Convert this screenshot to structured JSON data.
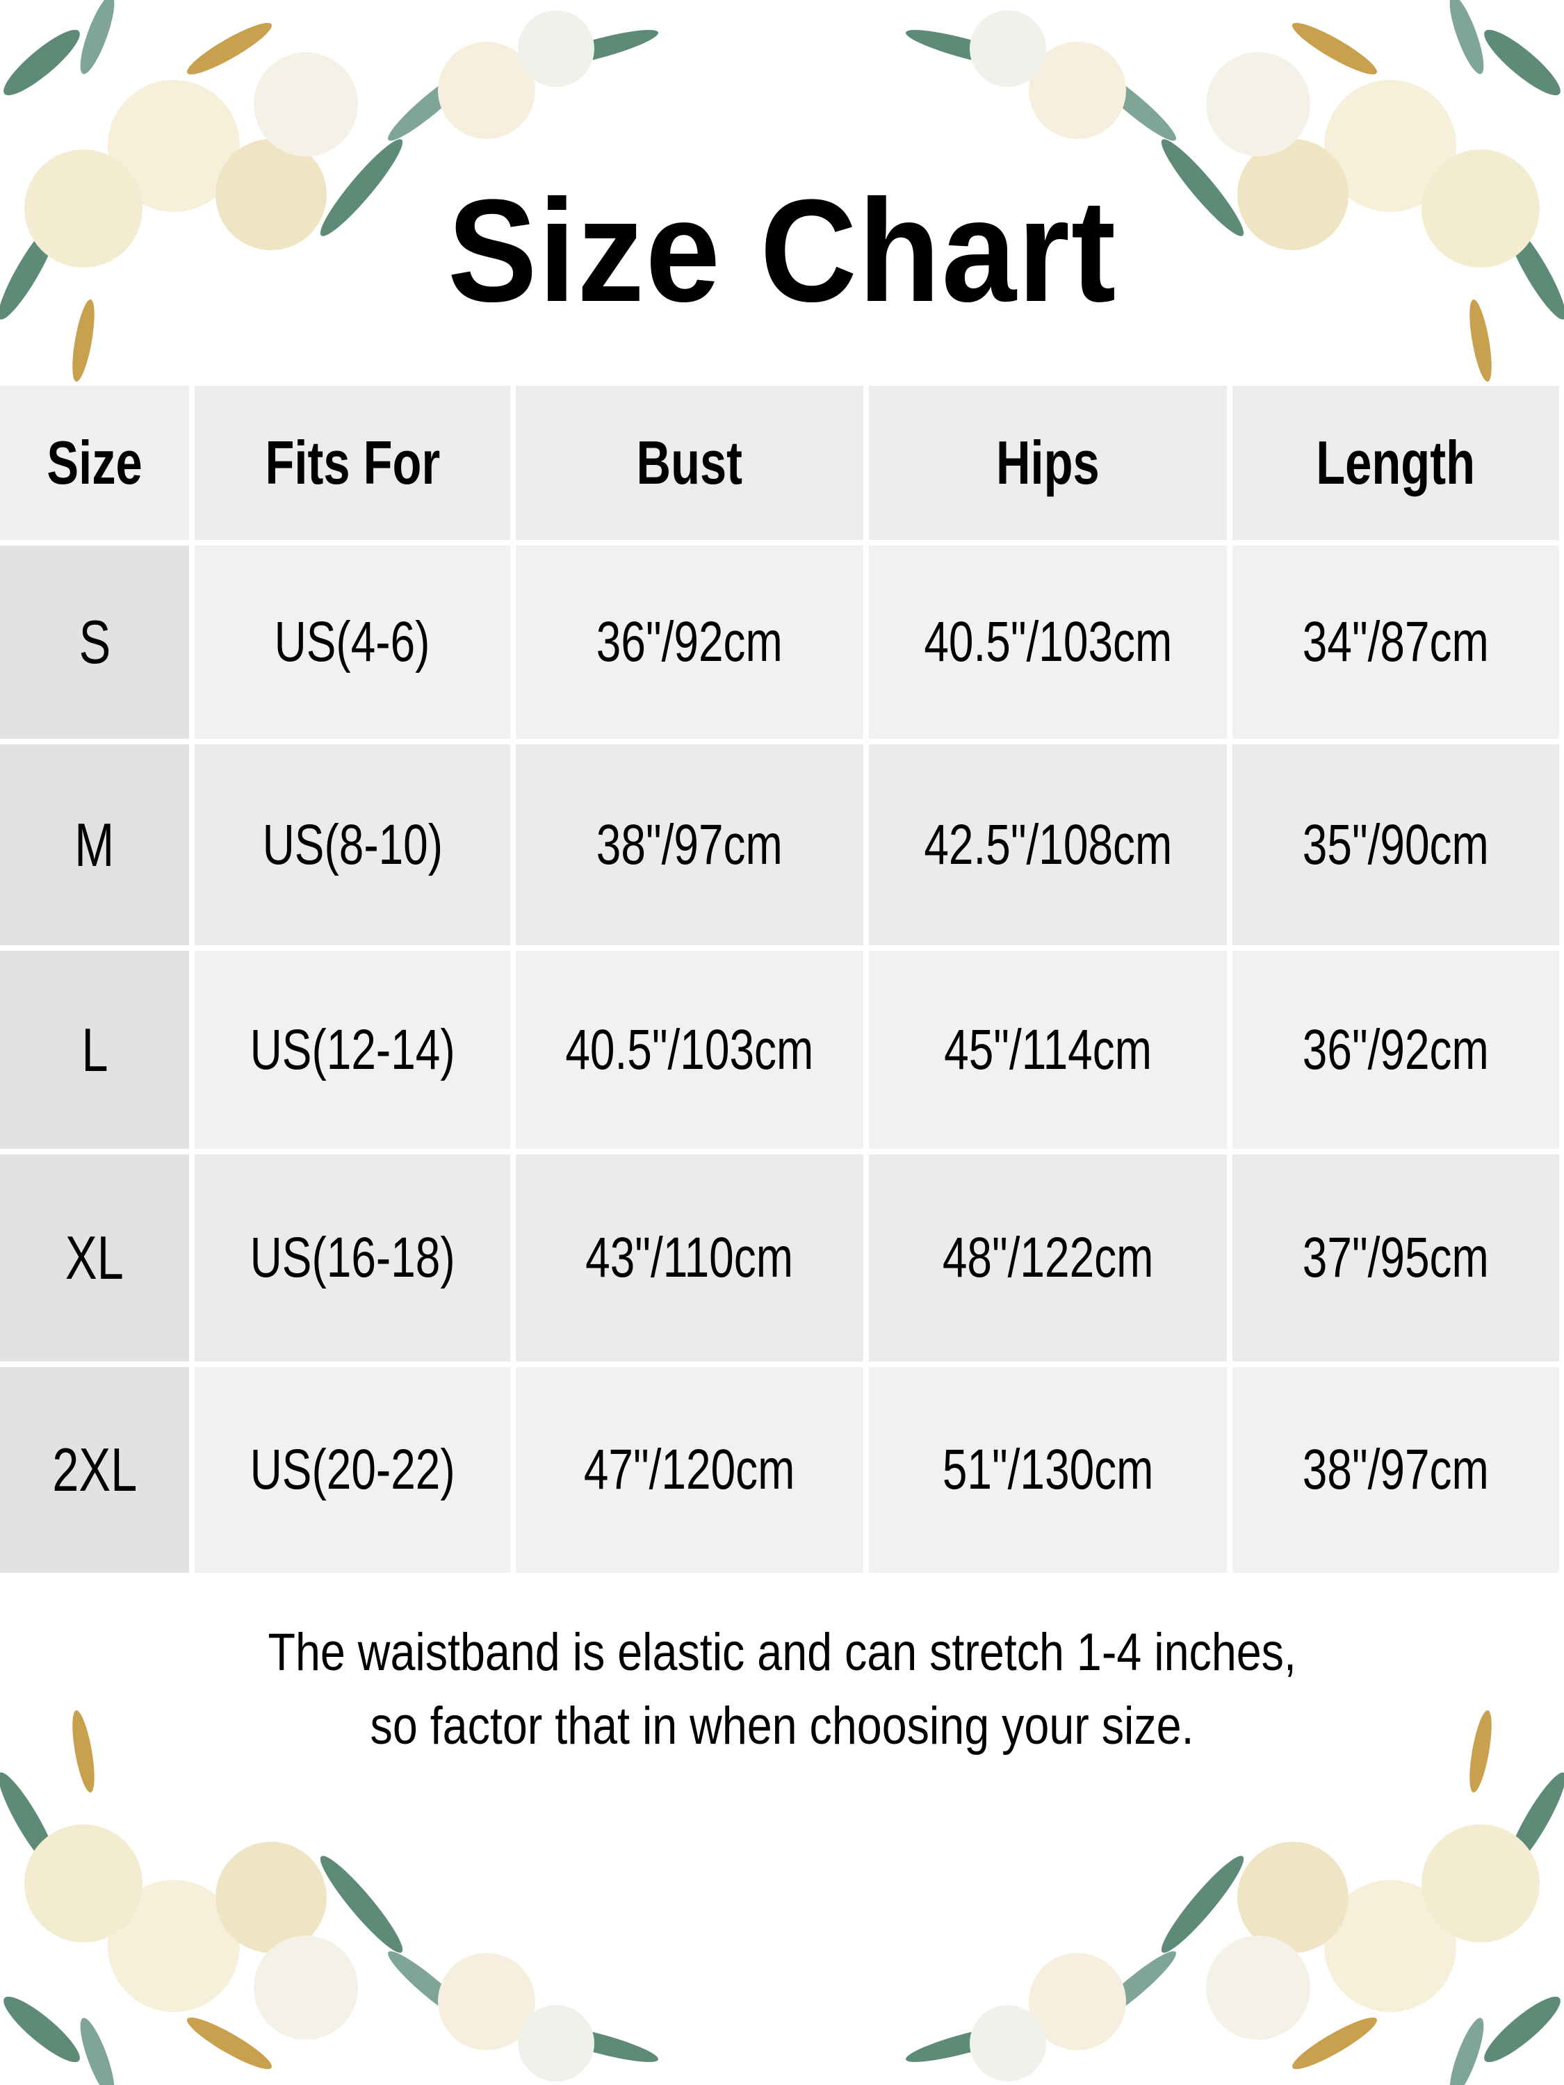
{
  "title": "Size Chart",
  "table": {
    "headers": [
      "Size",
      "Fits For",
      "Bust",
      "Hips",
      "Length"
    ],
    "rows": [
      [
        "S",
        "US(4-6)",
        "36\"/92cm",
        "40.5\"/103cm",
        "34\"/87cm"
      ],
      [
        "M",
        "US(8-10)",
        "38\"/97cm",
        "42.5\"/108cm",
        "35\"/90cm"
      ],
      [
        "L",
        "US(12-14)",
        "40.5\"/103cm",
        "45\"/114cm",
        "36\"/92cm"
      ],
      [
        "XL",
        "US(16-18)",
        "43\"/110cm",
        "48\"/122cm",
        "37\"/95cm"
      ],
      [
        "2XL",
        "US(20-22)",
        "47\"/120cm",
        "51\"/130cm",
        "38\"/97cm"
      ]
    ]
  },
  "note": {
    "line1": "The waistband is elastic and can stretch 1-4 inches,",
    "line2": "so factor that in when choosing your size."
  },
  "colors": {
    "header_bg": "#ececec",
    "size_col_bg": "#e2e2e2",
    "cell_bg": "#f1f1f1",
    "leaf_green": "#5e8a78",
    "leaf_gold": "#c9a04e",
    "rose": "#f6efd9"
  }
}
